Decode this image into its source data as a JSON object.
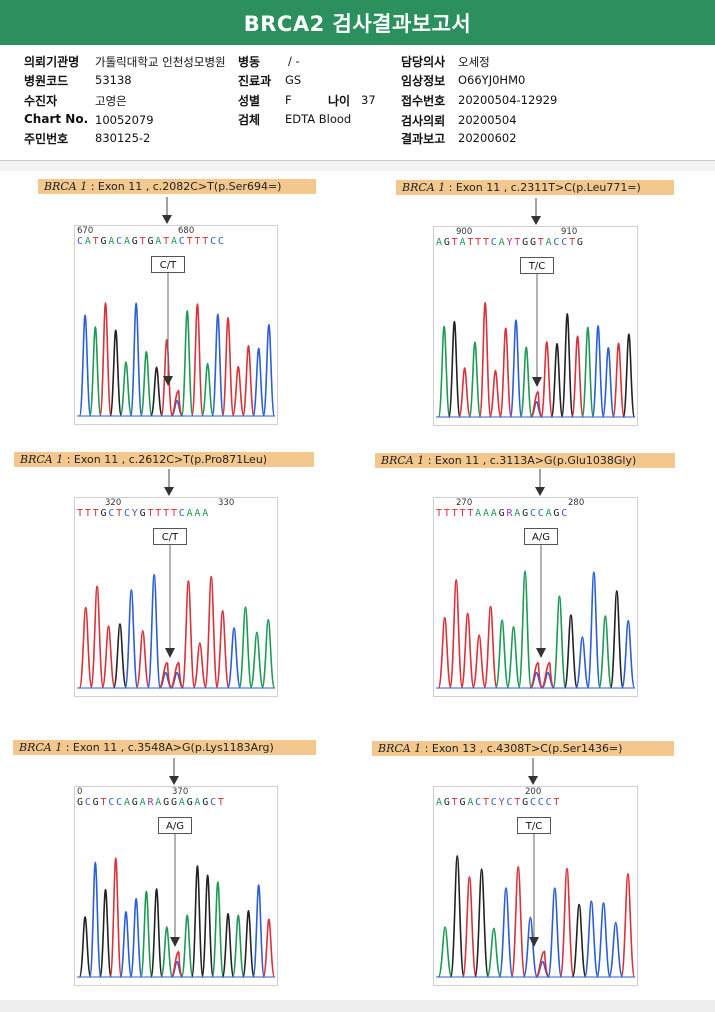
{
  "report": {
    "title": "BRCA2 검사결과보고서"
  },
  "info": {
    "institution_label": "의뢰기관명",
    "institution_value": "가톨릭대학교 인천성모병원",
    "ward_label": "병동",
    "ward_value": "/ -",
    "doctor_label": "담당의사",
    "doctor_value": "오세정",
    "hospital_code_label": "병원코드",
    "hospital_code_value": "53138",
    "department_label": "진료과",
    "department_value": "GS",
    "clinical_label": "임상정보",
    "clinical_value": "O66YJ0HM0",
    "patient_label": "수진자",
    "patient_value": "고영은",
    "sex_label": "성별",
    "sex_value": "F",
    "age_label": "나이",
    "age_value": "37",
    "receipt_label": "접수번호",
    "receipt_value": "20200504-12929",
    "chart_label": "Chart No.",
    "chart_value": "10052079",
    "specimen_label": "검체",
    "specimen_value": "EDTA Blood",
    "request_label": "검사의뢰",
    "request_value": "20200504",
    "id_label": "주민번호",
    "id_value": "830125-2",
    "result_label": "결과보고",
    "result_value": "20200602"
  },
  "panels": [
    {
      "gene": "BRCA 1",
      "desc": ": Exon 11 , c.2082C>T(p.Ser694=)",
      "seq": "CATGACAGTGATACTTTCC",
      "pos_left": "670",
      "pos_right": "680",
      "call": "C/T"
    },
    {
      "gene": "BRCA 1",
      "desc": ": Exon 11 , c.2311T>C(p.Leu771=)",
      "seq": "AGTATTTCAYTGGTACCTG",
      "pos_left": "900",
      "pos_right": "910",
      "call": "T/C"
    },
    {
      "gene": "BRCA 1",
      "desc": ": Exon 11 , c.2612C>T(p.Pro871Leu)",
      "seq": "TTTGCTCYGTTTTCAAA",
      "pos_left": "320",
      "pos_right": "330",
      "call": "C/T"
    },
    {
      "gene": "BRCA 1",
      "desc": ": Exon 11 , c.3113A>G(p.Glu1038Gly)",
      "seq": "TTTTTAAAGRAGCCAGC",
      "pos_left": "270",
      "pos_right": "280",
      "call": "A/G"
    },
    {
      "gene": "BRCA 1",
      "desc": ": Exon 11 , c.3548A>G(p.Lys1183Arg)",
      "seq": "GCGTCCAGARAGGAGAGCT",
      "pos_left": "0",
      "pos_right": "370",
      "call": "A/G"
    },
    {
      "gene": "BRCA 1",
      "desc": ": Exon 13 , c.4308T>C(p.Ser1436=)",
      "seq": "AGTGACTCYCTGCCCT",
      "pos_left": "",
      "pos_right": "200",
      "call": "T/C"
    }
  ],
  "colors": {
    "A": "#1f9a55",
    "C": "#2c5fd4",
    "G": "#222222",
    "T": "#d8323b",
    "ambig": "#8e3da8",
    "header_green": "#2b8f5e",
    "label_bg": "#f3c88f"
  }
}
